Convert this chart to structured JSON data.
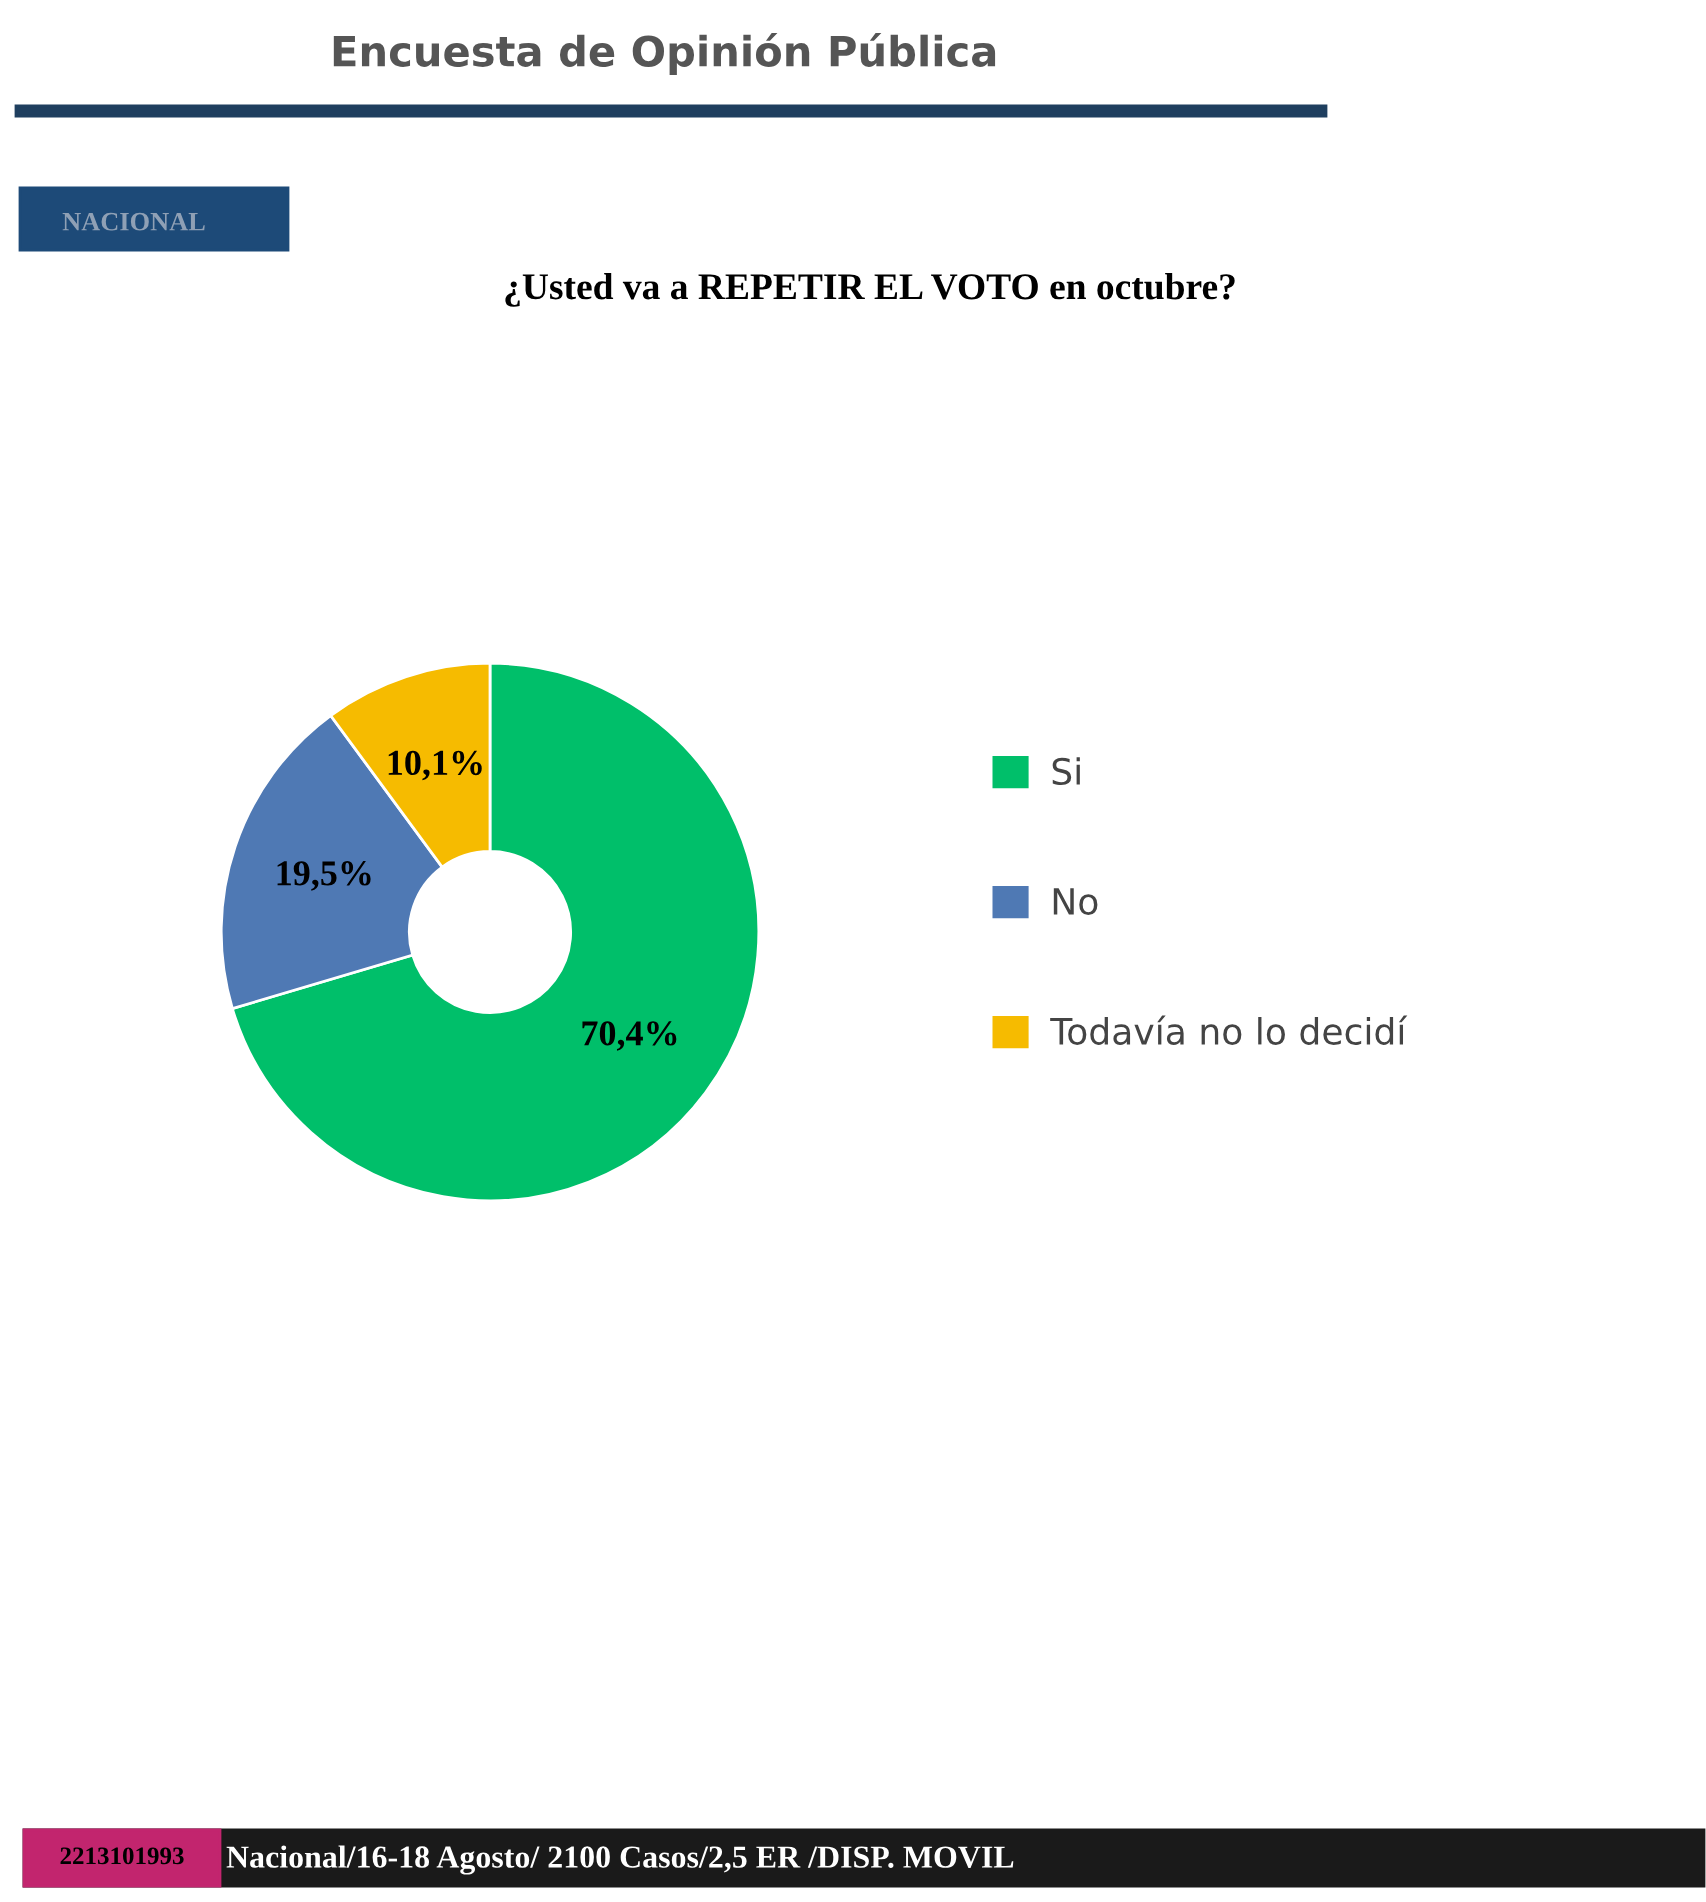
{
  "chart_data": {
    "type": "donut",
    "title": "¿Usted va a REPETIR EL VOTO en octubre?",
    "categories": [
      "Si",
      "No",
      "Todavía no lo decidí"
    ],
    "values": [
      70.4,
      19.5,
      10.1
    ],
    "colors": [
      "#00bf6a",
      "#4f79b4",
      "#f6bb00"
    ],
    "value_labels": [
      "70,4%",
      "19,5%",
      "10,1%"
    ],
    "legend": "right",
    "annotations": [
      "Encuesta de Opinión Pública",
      "NACIONAL",
      "2213101993",
      "Nacional/16-18 Agosto/ 2100 Casos/2,5 ER /DISP. MOVIL"
    ]
  }
}
